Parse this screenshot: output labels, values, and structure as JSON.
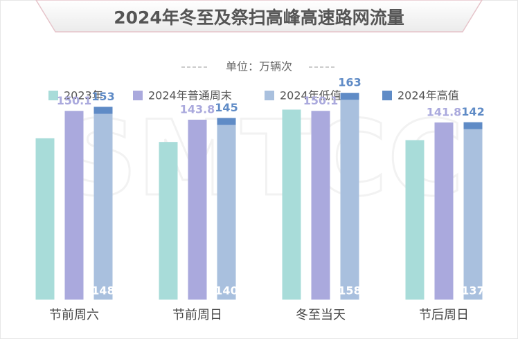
{
  "chart_data": {
    "type": "bar",
    "title": "2024年冬至及祭扫高峰高速路网流量",
    "subtitle": "单位：万辆次",
    "watermark": "SMTCC",
    "categories": [
      "节前周六",
      "节前周日",
      "冬至当天",
      "节后周日"
    ],
    "series": [
      {
        "name": "2023年",
        "color": "#a8dcd9",
        "values": [
          130.5,
          127.9,
          151,
          129.2
        ]
      },
      {
        "name": "2024年普通周末",
        "color": "#aaa9dd",
        "values": [
          150.1,
          143.8,
          150.1,
          141.8
        ]
      },
      {
        "name": "2024年低值",
        "color": "#a9c0de",
        "values": [
          148,
          140,
          158,
          137
        ]
      },
      {
        "name": "2024年高值",
        "color": "#5f8bc6",
        "values": [
          153,
          145,
          163,
          142
        ]
      }
    ],
    "ylim": [
      15.3,
      170
    ]
  }
}
